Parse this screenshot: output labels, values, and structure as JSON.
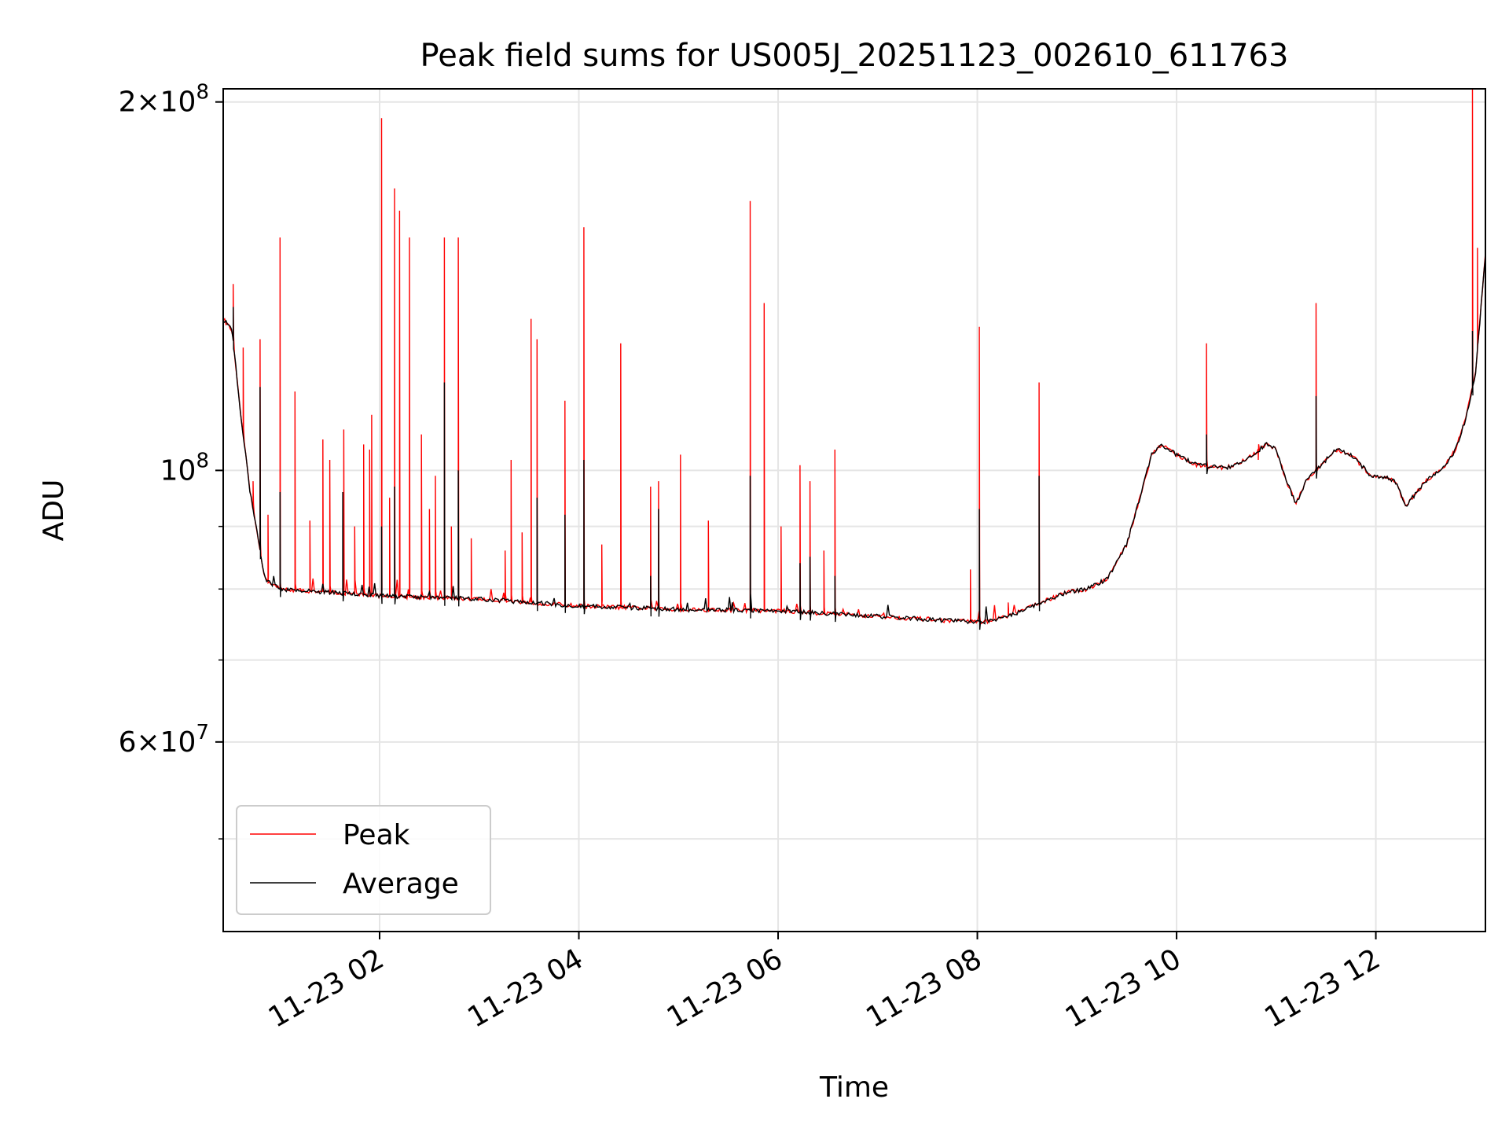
{
  "chart_data": {
    "type": "line",
    "title": "Peak field sums for US005J_20251123_002610_611763",
    "xlabel": "Time",
    "ylabel": "ADU",
    "yscale": "log",
    "ylim": [
      42000000,
      205000000
    ],
    "xlim_hours": [
      0.43,
      13.1
    ],
    "grid": true,
    "legend_position": "lower-left",
    "colors": {
      "peak": "#ff0000",
      "average": "#000000",
      "grid": "#e5e5e5"
    },
    "x_ticks": [
      {
        "hour": 2,
        "label": "11-23 02"
      },
      {
        "hour": 4,
        "label": "11-23 04"
      },
      {
        "hour": 6,
        "label": "11-23 06"
      },
      {
        "hour": 8,
        "label": "11-23 08"
      },
      {
        "hour": 10,
        "label": "11-23 10"
      },
      {
        "hour": 12,
        "label": "11-23 12"
      }
    ],
    "y_major_ticks": [
      {
        "value": 60000000,
        "mantissa": "6",
        "exp": "7"
      },
      {
        "value": 100000000,
        "mantissa": "",
        "exp": "8"
      },
      {
        "value": 200000000,
        "mantissa": "2",
        "exp": "8"
      }
    ],
    "y_minor_ticks": [
      50000000,
      70000000,
      80000000,
      90000000
    ],
    "baseline": [
      [
        0.43,
        133000000
      ],
      [
        0.52,
        130000000
      ],
      [
        0.6,
        112000000
      ],
      [
        0.7,
        96000000
      ],
      [
        0.78,
        88000000
      ],
      [
        0.85,
        81500000
      ],
      [
        1.0,
        80000000
      ],
      [
        2.0,
        79000000
      ],
      [
        3.0,
        78500000
      ],
      [
        4.0,
        77500000
      ],
      [
        5.0,
        77000000
      ],
      [
        6.0,
        76800000
      ],
      [
        7.0,
        76000000
      ],
      [
        7.8,
        75300000
      ],
      [
        8.1,
        75200000
      ],
      [
        8.4,
        76500000
      ],
      [
        8.6,
        77800000
      ],
      [
        8.9,
        79500000
      ],
      [
        9.1,
        80000000
      ],
      [
        9.3,
        81500000
      ],
      [
        9.5,
        87000000
      ],
      [
        9.6,
        93000000
      ],
      [
        9.75,
        103000000
      ],
      [
        9.85,
        105000000
      ],
      [
        10.0,
        103000000
      ],
      [
        10.2,
        101000000
      ],
      [
        10.5,
        100500000
      ],
      [
        10.7,
        102000000
      ],
      [
        10.9,
        105000000
      ],
      [
        11.0,
        104000000
      ],
      [
        11.1,
        98000000
      ],
      [
        11.2,
        94000000
      ],
      [
        11.3,
        98000000
      ],
      [
        11.45,
        101000000
      ],
      [
        11.6,
        104000000
      ],
      [
        11.75,
        103000000
      ],
      [
        11.85,
        101000000
      ],
      [
        11.95,
        99000000
      ],
      [
        12.1,
        98800000
      ],
      [
        12.2,
        97800000
      ],
      [
        12.3,
        93500000
      ],
      [
        12.5,
        98000000
      ],
      [
        12.7,
        101000000
      ],
      [
        12.8,
        104000000
      ],
      [
        12.9,
        110000000
      ],
      [
        13.0,
        120000000
      ],
      [
        13.1,
        150000000
      ]
    ],
    "series": [
      {
        "name": "Peak",
        "spikes": [
          [
            0.53,
            142000000
          ],
          [
            0.63,
            126000000
          ],
          [
            0.73,
            98000000
          ],
          [
            0.8,
            128000000
          ],
          [
            0.88,
            92000000
          ],
          [
            1.0,
            155000000
          ],
          [
            1.15,
            116000000
          ],
          [
            1.3,
            91000000
          ],
          [
            1.43,
            106000000
          ],
          [
            1.5,
            102000000
          ],
          [
            1.64,
            108000000
          ],
          [
            1.75,
            90000000
          ],
          [
            1.84,
            105000000
          ],
          [
            1.9,
            104000000
          ],
          [
            1.92,
            111000000
          ],
          [
            2.02,
            194000000
          ],
          [
            2.1,
            95000000
          ],
          [
            2.15,
            170000000
          ],
          [
            2.2,
            163000000
          ],
          [
            2.3,
            155000000
          ],
          [
            2.42,
            107000000
          ],
          [
            2.5,
            93000000
          ],
          [
            2.56,
            99000000
          ],
          [
            2.65,
            155000000
          ],
          [
            2.72,
            90000000
          ],
          [
            2.79,
            155000000
          ],
          [
            2.92,
            88000000
          ],
          [
            3.26,
            86000000
          ],
          [
            3.32,
            102000000
          ],
          [
            3.43,
            89000000
          ],
          [
            3.52,
            133000000
          ],
          [
            3.58,
            128000000
          ],
          [
            3.86,
            114000000
          ],
          [
            4.05,
            158000000
          ],
          [
            4.23,
            87000000
          ],
          [
            4.42,
            127000000
          ],
          [
            4.72,
            97000000
          ],
          [
            4.8,
            98000000
          ],
          [
            5.02,
            103000000
          ],
          [
            5.3,
            91000000
          ],
          [
            5.72,
            166000000
          ],
          [
            5.86,
            137000000
          ],
          [
            6.03,
            90000000
          ],
          [
            6.22,
            101000000
          ],
          [
            6.32,
            98000000
          ],
          [
            6.46,
            86000000
          ],
          [
            6.57,
            104000000
          ],
          [
            7.93,
            83000000
          ],
          [
            8.02,
            131000000
          ],
          [
            8.31,
            78000000
          ],
          [
            8.62,
            118000000
          ],
          [
            10.3,
            127000000
          ],
          [
            10.82,
            102000000
          ],
          [
            11.4,
            137000000
          ],
          [
            12.97,
            205000000
          ],
          [
            13.02,
            152000000
          ]
        ]
      },
      {
        "name": "Average",
        "spikes": [
          [
            0.53,
            136000000
          ],
          [
            0.8,
            117000000
          ],
          [
            1.0,
            96000000
          ],
          [
            1.63,
            96000000
          ],
          [
            2.02,
            90000000
          ],
          [
            2.15,
            97000000
          ],
          [
            2.65,
            118000000
          ],
          [
            2.79,
            100000000
          ],
          [
            3.58,
            95000000
          ],
          [
            3.86,
            92000000
          ],
          [
            4.05,
            102000000
          ],
          [
            4.72,
            82000000
          ],
          [
            4.8,
            93000000
          ],
          [
            5.72,
            99000000
          ],
          [
            6.22,
            84000000
          ],
          [
            6.32,
            85000000
          ],
          [
            6.57,
            82000000
          ],
          [
            8.02,
            93000000
          ],
          [
            8.62,
            99000000
          ],
          [
            10.3,
            107000000
          ],
          [
            11.4,
            115000000
          ],
          [
            12.97,
            130000000
          ]
        ]
      }
    ]
  }
}
